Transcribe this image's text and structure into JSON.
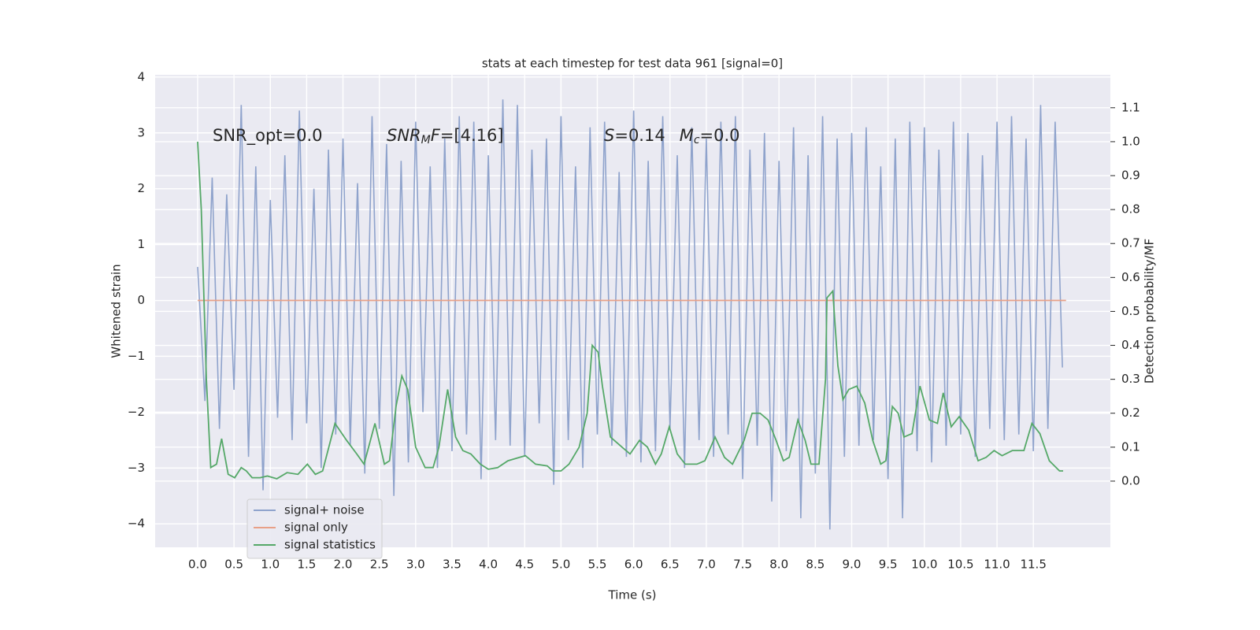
{
  "chart_data": {
    "type": "line",
    "title": "stats at each timestep for test data 961 [signal=0]",
    "xlabel": "Time (s)",
    "ylabel": "Whitened strain",
    "y2label": "Detection probability/MF",
    "annotations": [
      [
        "SNR_opt=0.0"
      ],
      [
        "SNR",
        "M",
        "F",
        "=[4.16]"
      ],
      [
        "S",
        "=0.14",
        "M",
        "c",
        "=0.0"
      ]
    ],
    "xlim": [
      -0.585,
      12.56
    ],
    "ylim": [
      -4.42,
      4.04
    ],
    "y2lim": [
      -0.195,
      1.197
    ],
    "xticks": [
      {
        "value": 0,
        "label": "0.0"
      },
      0.5,
      {
        "value": 1,
        "label": "1.0"
      },
      1.5,
      {
        "value": 2,
        "label": "2.0"
      },
      2.5,
      {
        "value": 3,
        "label": "3.0"
      },
      3.5,
      {
        "value": 4,
        "label": "4.0"
      },
      4.5,
      {
        "value": 5,
        "label": "5.0"
      },
      5.5,
      {
        "value": 6,
        "label": "6.0"
      },
      6.5,
      {
        "value": 7,
        "label": "7.0"
      },
      7.5,
      {
        "value": 8,
        "label": "8.0"
      },
      8.5,
      {
        "value": 9,
        "label": "9.0"
      },
      9.5,
      {
        "value": 10,
        "label": "10.0"
      },
      10.5,
      {
        "value": 11,
        "label": "11.0"
      },
      11.5
    ],
    "yticks": [
      {
        "value": -4,
        "label": "−4"
      },
      {
        "value": -3,
        "label": "−3"
      },
      {
        "value": -2,
        "label": "−2"
      },
      {
        "value": -1,
        "label": "−1"
      },
      0,
      1,
      2,
      3,
      4
    ],
    "y2ticks": [
      {
        "value": 0,
        "label": "0.0"
      },
      0.1,
      0.2,
      0.3,
      0.4,
      0.5,
      0.6,
      0.7,
      0.8,
      0.9,
      {
        "value": 1,
        "label": "1.0"
      },
      1.1
    ],
    "grid": true,
    "legend": "lower left",
    "series": [
      {
        "name": "signal+ noise",
        "color": "#8fa3cc",
        "x": [
          0.0,
          0.1,
          0.2,
          0.3,
          0.4,
          0.5,
          0.6,
          0.7,
          0.8,
          0.9,
          1.0,
          1.1,
          1.2,
          1.3,
          1.4,
          1.5,
          1.6,
          1.7,
          1.8,
          1.9,
          2.0,
          2.1,
          2.2,
          2.3,
          2.4,
          2.5,
          2.6,
          2.7,
          2.8,
          2.9,
          3.0,
          3.1,
          3.2,
          3.3,
          3.4,
          3.5,
          3.6,
          3.7,
          3.8,
          3.9,
          4.0,
          4.1,
          4.2,
          4.3,
          4.4,
          4.5,
          4.6,
          4.7,
          4.8,
          4.9,
          5.0,
          5.1,
          5.2,
          5.3,
          5.4,
          5.5,
          5.6,
          5.7,
          5.8,
          5.9,
          6.0,
          6.1,
          6.2,
          6.3,
          6.4,
          6.5,
          6.6,
          6.7,
          6.8,
          6.9,
          7.0,
          7.1,
          7.2,
          7.3,
          7.4,
          7.5,
          7.6,
          7.7,
          7.8,
          7.9,
          8.0,
          8.1,
          8.2,
          8.3,
          8.4,
          8.5,
          8.6,
          8.7,
          8.8,
          8.9,
          9.0,
          9.1,
          9.2,
          9.3,
          9.4,
          9.5,
          9.6,
          9.7,
          9.8,
          9.9,
          10.0,
          10.1,
          10.2,
          10.3,
          10.4,
          10.5,
          10.6,
          10.7,
          10.8,
          10.9,
          11.0,
          11.1,
          11.2,
          11.3,
          11.4,
          11.5,
          11.6,
          11.7,
          11.8,
          11.9
        ],
        "values": [
          0.6,
          -1.8,
          2.2,
          -2.3,
          1.9,
          -1.6,
          3.5,
          -2.8,
          2.4,
          -3.4,
          1.8,
          -2.1,
          2.6,
          -2.5,
          3.4,
          -2.2,
          2.0,
          -3.0,
          2.7,
          -2.4,
          2.9,
          -2.6,
          2.1,
          -3.1,
          3.3,
          -2.3,
          2.8,
          -3.5,
          2.5,
          -2.9,
          3.2,
          -2.0,
          2.4,
          -3.0,
          2.9,
          -2.7,
          3.3,
          -2.4,
          3.2,
          -3.2,
          2.6,
          -2.5,
          3.6,
          -2.6,
          3.5,
          -2.8,
          2.7,
          -2.2,
          2.9,
          -3.3,
          3.3,
          -2.5,
          2.4,
          -3.0,
          3.1,
          -2.4,
          3.2,
          -2.6,
          2.3,
          -2.8,
          3.4,
          -2.9,
          2.5,
          -2.7,
          3.3,
          -2.3,
          2.6,
          -3.0,
          3.1,
          -2.5,
          2.9,
          -2.8,
          3.2,
          -2.4,
          3.3,
          -3.2,
          2.7,
          -2.6,
          3.0,
          -3.6,
          2.5,
          -2.7,
          3.1,
          -3.9,
          2.6,
          -3.1,
          3.3,
          -4.1,
          2.9,
          -2.8,
          3.0,
          -2.6,
          3.1,
          -2.5,
          2.4,
          -3.2,
          2.9,
          -3.9,
          3.2,
          -2.7,
          3.1,
          -2.9,
          2.7,
          -2.6,
          3.2,
          -2.4,
          3.0,
          -2.8,
          2.6,
          -2.3,
          3.2,
          -2.5,
          3.3,
          -2.4,
          2.9,
          -2.7,
          3.5,
          -2.3,
          3.2,
          -1.2
        ]
      },
      {
        "name": "signal only",
        "color": "#e8a087",
        "x": [
          0.0,
          11.95
        ],
        "values": [
          0,
          0
        ]
      },
      {
        "name": "signal statistics",
        "color": "#55a868",
        "axis": "y2",
        "x": [
          0.0,
          0.05,
          0.12,
          0.18,
          0.26,
          0.33,
          0.42,
          0.51,
          0.6,
          0.67,
          0.75,
          0.86,
          0.96,
          1.09,
          1.23,
          1.38,
          1.51,
          1.62,
          1.72,
          1.89,
          2.05,
          2.19,
          2.29,
          2.44,
          2.57,
          2.64,
          2.73,
          2.81,
          2.89,
          3.0,
          3.13,
          3.24,
          3.32,
          3.44,
          3.55,
          3.65,
          3.76,
          3.89,
          4.0,
          4.13,
          4.27,
          4.43,
          4.51,
          4.65,
          4.81,
          4.89,
          5.0,
          5.11,
          5.25,
          5.36,
          5.43,
          5.51,
          5.57,
          5.68,
          5.84,
          5.95,
          6.08,
          6.19,
          6.3,
          6.38,
          6.49,
          6.6,
          6.71,
          6.87,
          6.98,
          7.12,
          7.25,
          7.36,
          7.52,
          7.63,
          7.74,
          7.85,
          7.96,
          8.06,
          8.14,
          8.26,
          8.36,
          8.44,
          8.55,
          8.64,
          8.66,
          8.74,
          8.81,
          8.88,
          8.96,
          9.07,
          9.18,
          9.29,
          9.4,
          9.47,
          9.56,
          9.64,
          9.72,
          9.83,
          9.94,
          10.07,
          10.18,
          10.26,
          10.37,
          10.48,
          10.61,
          10.74,
          10.85,
          10.96,
          11.07,
          11.21,
          11.37,
          11.48,
          11.59,
          11.72,
          11.86,
          11.91
        ],
        "values": [
          1.0,
          0.8,
          0.3,
          0.04,
          0.05,
          0.125,
          0.02,
          0.01,
          0.04,
          0.03,
          0.01,
          0.01,
          0.015,
          0.007,
          0.025,
          0.02,
          0.05,
          0.02,
          0.03,
          0.17,
          0.12,
          0.08,
          0.05,
          0.17,
          0.05,
          0.06,
          0.22,
          0.31,
          0.27,
          0.1,
          0.04,
          0.04,
          0.1,
          0.27,
          0.13,
          0.09,
          0.08,
          0.05,
          0.035,
          0.04,
          0.06,
          0.07,
          0.075,
          0.05,
          0.045,
          0.03,
          0.03,
          0.05,
          0.1,
          0.2,
          0.4,
          0.38,
          0.28,
          0.13,
          0.1,
          0.08,
          0.12,
          0.1,
          0.05,
          0.08,
          0.16,
          0.08,
          0.05,
          0.05,
          0.06,
          0.13,
          0.07,
          0.05,
          0.12,
          0.2,
          0.2,
          0.18,
          0.12,
          0.06,
          0.07,
          0.18,
          0.12,
          0.05,
          0.05,
          0.3,
          0.54,
          0.56,
          0.34,
          0.24,
          0.27,
          0.28,
          0.23,
          0.12,
          0.05,
          0.06,
          0.22,
          0.2,
          0.13,
          0.14,
          0.28,
          0.18,
          0.17,
          0.26,
          0.16,
          0.19,
          0.15,
          0.06,
          0.07,
          0.09,
          0.075,
          0.09,
          0.09,
          0.17,
          0.14,
          0.06,
          0.03,
          0.03
        ]
      }
    ]
  }
}
